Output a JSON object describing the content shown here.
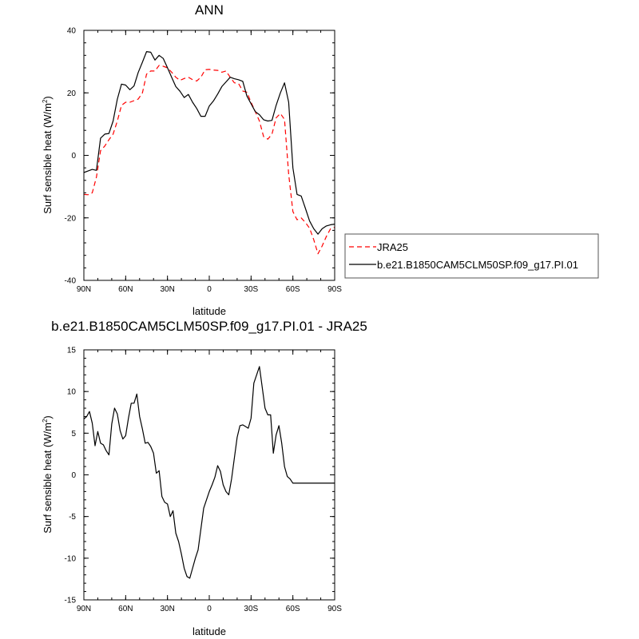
{
  "chart_data": [
    {
      "type": "line",
      "title": "ANN",
      "xlabel": "latitude",
      "ylabel": "Surf sensible heat (W/m",
      "ylabel_sup": "2",
      "ylabel_close": ")",
      "xlim": [
        90,
        -90
      ],
      "ylim": [
        -40,
        40
      ],
      "x_ticks": [
        90,
        60,
        30,
        0,
        -30,
        -60,
        -90
      ],
      "x_tick_labels": [
        "90N",
        "60N",
        "30N",
        "0",
        "30S",
        "60S",
        "90S"
      ],
      "y_ticks": [
        -40,
        -20,
        0,
        20,
        40
      ],
      "y_tick_labels": [
        "-40",
        "-20",
        "0",
        "20",
        "40"
      ],
      "legend_position": "right",
      "series": [
        {
          "name": "JRA25",
          "color": "#ff0000",
          "dashed": true,
          "x": [
            90,
            87,
            84,
            81,
            78,
            75,
            72,
            69,
            66,
            63,
            60,
            57,
            54,
            51,
            48,
            45,
            42,
            39,
            36,
            33,
            30,
            27,
            24,
            21,
            18,
            15,
            12,
            9,
            6,
            3,
            0,
            -3,
            -6,
            -9,
            -12,
            -15,
            -18,
            -21,
            -24,
            -27,
            -30,
            -33,
            -36,
            -39,
            -42,
            -45,
            -48,
            -51,
            -54,
            -57,
            -60,
            -63,
            -66,
            -69,
            -72,
            -75,
            -78,
            -81,
            -84,
            -87,
            -90
          ],
          "y": [
            -12.5,
            -12.6,
            -12.0,
            -7.0,
            1.5,
            3.0,
            5.0,
            6.8,
            11.0,
            16.0,
            17.0,
            17.0,
            17.5,
            18.0,
            20.0,
            26.0,
            27.0,
            27.0,
            28.8,
            28.5,
            28.0,
            26.6,
            25.0,
            24.0,
            24.6,
            25.0,
            24.2,
            23.8,
            25.0,
            27.4,
            27.5,
            27.3,
            27.2,
            26.6,
            27.0,
            25.0,
            23.2,
            23.0,
            20.6,
            20.2,
            17.0,
            14.0,
            11.0,
            6.0,
            5.2,
            6.8,
            12.0,
            13.4,
            11.5,
            -6.0,
            -18.0,
            -20.6,
            -20.0,
            -21.5,
            -23.3,
            -27.0,
            -31.5,
            -29.0,
            -26.0,
            -23.5,
            -23.0
          ]
        },
        {
          "name": "b.e21.B1850CAM5CLM50SP.f09_g17.PI.01",
          "color": "#000000",
          "dashed": false,
          "x": [
            90,
            87,
            84,
            81,
            78,
            75,
            72,
            69,
            66,
            63,
            60,
            57,
            54,
            51,
            48,
            45,
            42,
            39,
            36,
            33,
            30,
            27,
            24,
            21,
            18,
            15,
            12,
            9,
            6,
            3,
            0,
            -3,
            -6,
            -9,
            -12,
            -15,
            -18,
            -21,
            -24,
            -27,
            -30,
            -33,
            -36,
            -39,
            -42,
            -45,
            -48,
            -51,
            -54,
            -57,
            -60,
            -63,
            -66,
            -69,
            -72,
            -75,
            -78,
            -81,
            -84,
            -87,
            -90
          ],
          "y": [
            -5.5,
            -5.0,
            -4.5,
            -4.8,
            5.5,
            6.8,
            7.0,
            11.0,
            18.0,
            22.8,
            22.5,
            21.0,
            22.2,
            26.5,
            29.8,
            33.2,
            33.0,
            30.5,
            32.0,
            31.0,
            28.0,
            25.0,
            22.0,
            20.5,
            18.5,
            19.5,
            17.0,
            15.0,
            12.5,
            12.5,
            15.8,
            17.4,
            19.6,
            22.0,
            23.5,
            25.0,
            24.5,
            24.2,
            23.7,
            19.0,
            16.5,
            14.0,
            13.0,
            11.4,
            11.0,
            11.2,
            16.0,
            20.0,
            23.2,
            17.0,
            -4.0,
            -12.5,
            -13.0,
            -17.0,
            -21.0,
            -23.5,
            -25.2,
            -23.5,
            -22.6,
            -22.2,
            -22.0
          ]
        }
      ]
    },
    {
      "type": "line",
      "title": "b.e21.B1850CAM5CLM50SP.f09_g17.PI.01 - JRA25",
      "xlabel": "latitude",
      "ylabel": "Surf sensible heat (W/m",
      "ylabel_sup": "2",
      "ylabel_close": ")",
      "xlim": [
        90,
        -90
      ],
      "ylim": [
        -15,
        15
      ],
      "x_ticks": [
        90,
        60,
        30,
        0,
        -30,
        -60,
        -90
      ],
      "x_tick_labels": [
        "90N",
        "60N",
        "30N",
        "0",
        "30S",
        "60S",
        "90S"
      ],
      "y_ticks": [
        -15,
        -10,
        -5,
        0,
        5,
        10,
        15
      ],
      "y_tick_labels": [
        "-15",
        "-10",
        "-5",
        "0",
        "5",
        "10",
        "15"
      ],
      "series": [
        {
          "color": "#000000",
          "dashed": false,
          "x": [
            90,
            88,
            86,
            84,
            82,
            80,
            78,
            76,
            74,
            72,
            70,
            68,
            66,
            64,
            62,
            60,
            58,
            56,
            54,
            52,
            50,
            48,
            46,
            44,
            42,
            40,
            38,
            36,
            34,
            32,
            30,
            28,
            26,
            24,
            22,
            20,
            18,
            16,
            14,
            12,
            10,
            8,
            6,
            4,
            2,
            0,
            -2,
            -4,
            -6,
            -8,
            -10,
            -12,
            -14,
            -16,
            -18,
            -20,
            -22,
            -24,
            -26,
            -28,
            -30,
            -32,
            -34,
            -36,
            -38,
            -40,
            -42,
            -44,
            -46,
            -48,
            -50,
            -52,
            -54,
            -56,
            -58,
            -60,
            -62,
            -64,
            -66,
            -68,
            -70,
            -72,
            -74,
            -76,
            -78,
            -80,
            -82,
            -84,
            -86,
            -88,
            -90
          ],
          "y": [
            6.7,
            7.0,
            7.6,
            6.2,
            3.5,
            5.2,
            3.8,
            3.6,
            2.9,
            2.4,
            6.1,
            8.0,
            7.3,
            5.3,
            4.3,
            4.7,
            6.8,
            8.6,
            8.6,
            9.7,
            7.0,
            5.5,
            3.8,
            3.9,
            3.4,
            2.6,
            0.2,
            0.5,
            -2.6,
            -3.3,
            -3.5,
            -5.0,
            -4.3,
            -7.0,
            -8.0,
            -9.5,
            -11.2,
            -12.2,
            -12.4,
            -11.2,
            -10.0,
            -9.0,
            -6.5,
            -4.0,
            -3.0,
            -2.0,
            -1.2,
            -0.3,
            1.1,
            0.4,
            -1.2,
            -2.0,
            -2.4,
            -0.5,
            2.0,
            4.5,
            5.9,
            6.0,
            5.8,
            5.6,
            6.8,
            11.0,
            12.0,
            13.0,
            10.5,
            8.0,
            7.2,
            7.2,
            2.6,
            4.8,
            5.9,
            3.8,
            1.0,
            -0.2,
            -0.5,
            -1.0,
            -1.0,
            -1.0,
            -1.0,
            -1.0,
            -1.0,
            -1.0,
            -1.0,
            -1.0,
            -1.0,
            -1.0,
            -1.0,
            -1.0,
            -1.0,
            -1.0,
            -1.0
          ]
        }
      ]
    }
  ]
}
